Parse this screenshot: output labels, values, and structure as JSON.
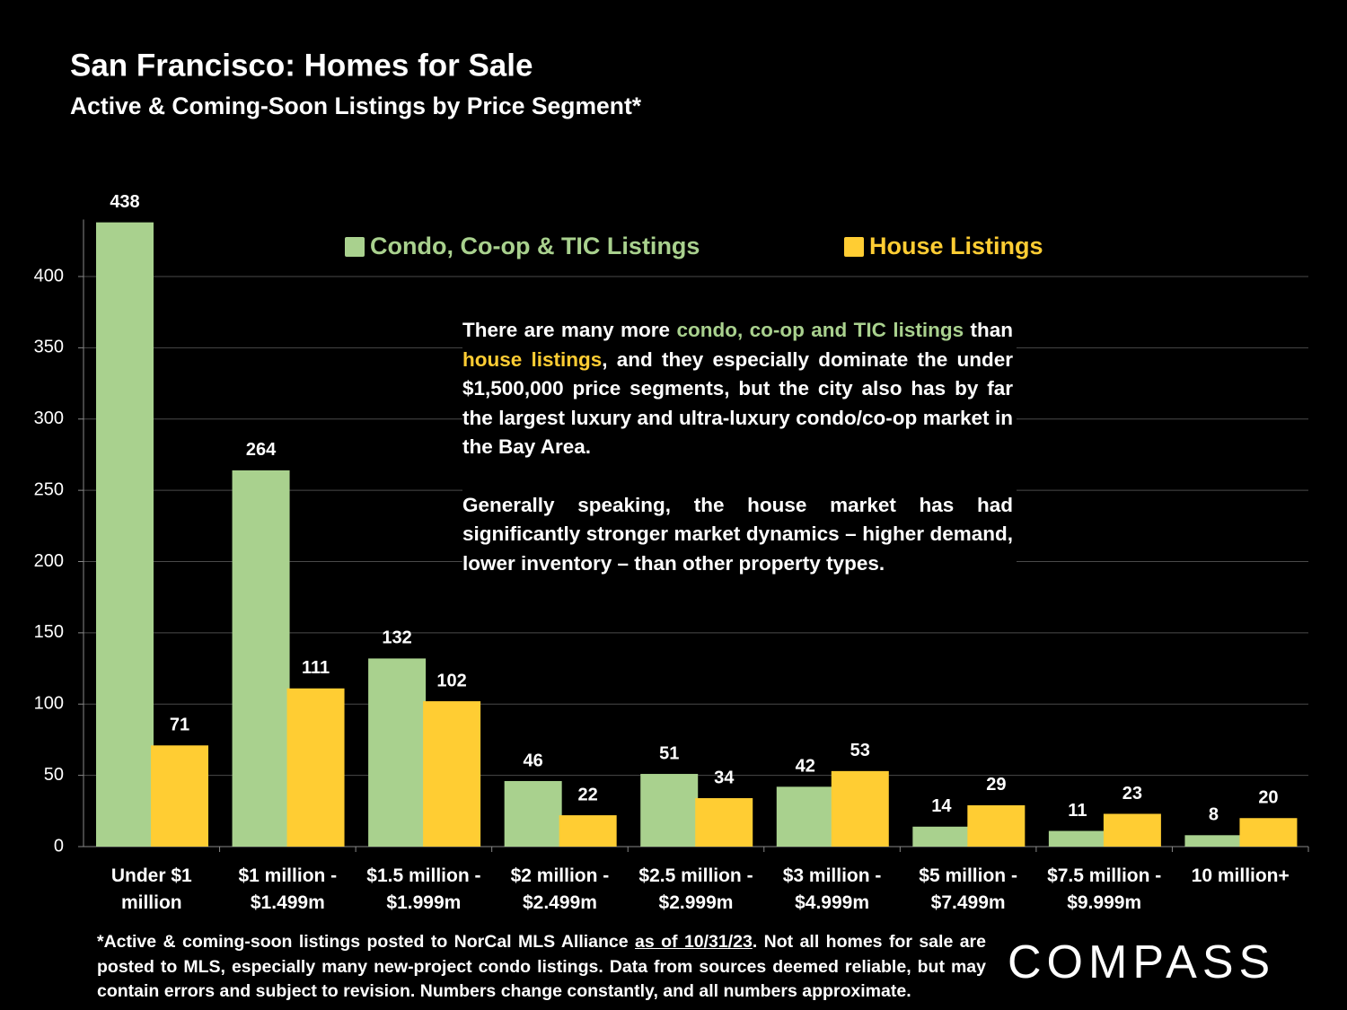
{
  "chart_data": {
    "type": "bar",
    "title": "San Francisco: Homes for Sale",
    "subtitle": "Active & Coming-Soon Listings by Price Segment*",
    "categories": [
      [
        "Under $1",
        "million"
      ],
      [
        "$1 million -",
        "$1.499m"
      ],
      [
        "$1.5 million -",
        "$1.999m"
      ],
      [
        "$2 million -",
        "$2.499m"
      ],
      [
        "$2.5 million -",
        "$2.999m"
      ],
      [
        "$3 million -",
        "$4.999m"
      ],
      [
        "$5 million -",
        "$7.499m"
      ],
      [
        "$7.5 million -",
        "$9.999m"
      ],
      [
        "10 million+"
      ]
    ],
    "series": [
      {
        "name": "Condo, Co-op & TIC Listings",
        "color": "#a9d18e",
        "values": [
          438,
          264,
          132,
          46,
          51,
          42,
          14,
          11,
          8
        ]
      },
      {
        "name": "House Listings",
        "color": "#ffcd33",
        "values": [
          71,
          111,
          102,
          22,
          34,
          53,
          29,
          23,
          20
        ]
      }
    ],
    "ylim": [
      0,
      440
    ],
    "yticks": [
      0,
      50,
      100,
      150,
      200,
      250,
      300,
      350,
      400
    ],
    "grid": true,
    "legend": "top",
    "annotation": [
      [
        "There are many more ",
        "condo, co-op and TIC listings",
        " than ",
        "house listings",
        ", and they especially dominate the under $1,500,000 price segments, but the city also has by far the largest luxury and ultra-luxury condo/co-op market in the Bay Area."
      ],
      [
        "Generally speaking, the house market has had significantly stronger market dynamics – higher demand, lower inventory – than other property types."
      ]
    ],
    "footnote": [
      "*Active & coming-soon listings posted to NorCal MLS Alliance ",
      "as of 10/31/23",
      ". Not all homes for sale are posted to MLS, especially many new-project condo listings. Data from sources deemed reliable, but may contain errors and subject to revision. Numbers change constantly, and all numbers approximate."
    ],
    "logo": "COMPASS"
  }
}
